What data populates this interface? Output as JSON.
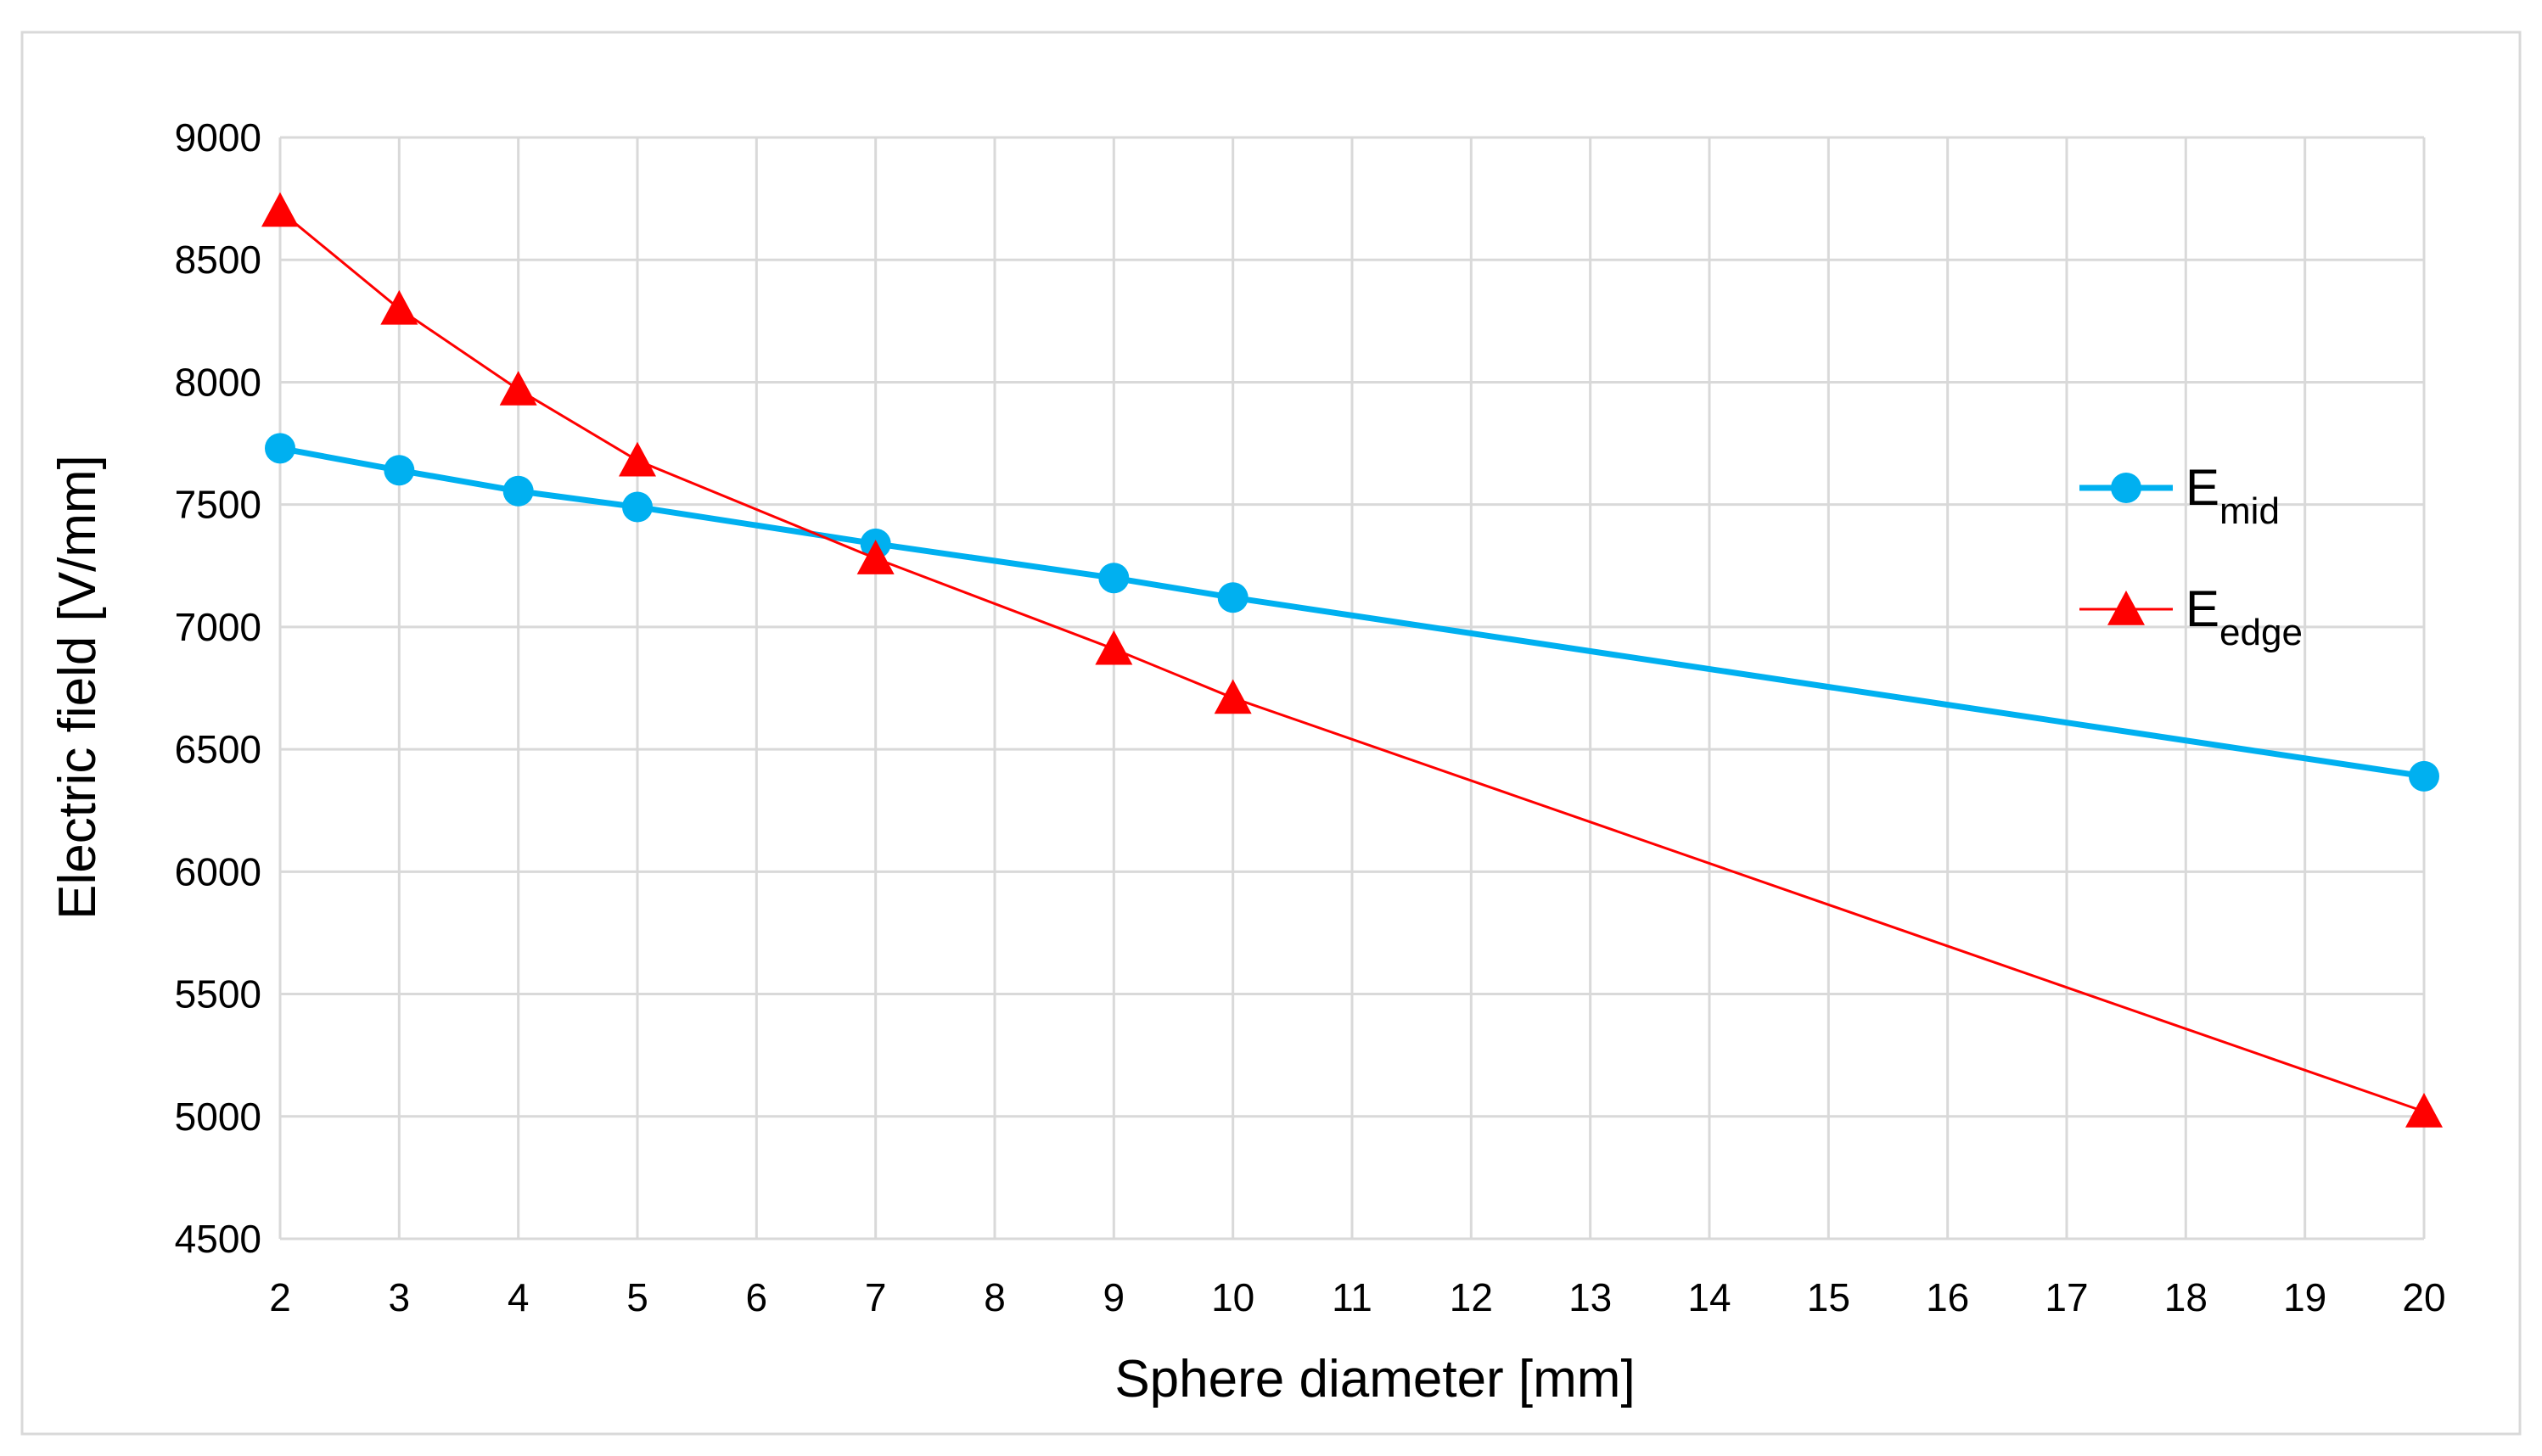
{
  "chart_data": {
    "type": "line",
    "xlabel": "Sphere diameter [mm]",
    "ylabel": "Electric field [V/mm]",
    "xlim": [
      2,
      20
    ],
    "ylim": [
      4500,
      9000
    ],
    "x_ticks": [
      "2",
      "3",
      "4",
      "5",
      "6",
      "7",
      "8",
      "9",
      "10",
      "11",
      "12",
      "13",
      "14",
      "15",
      "16",
      "17",
      "18",
      "19",
      "20"
    ],
    "y_ticks": [
      "4500",
      "5000",
      "5500",
      "6000",
      "6500",
      "7000",
      "7500",
      "8000",
      "8500",
      "9000"
    ],
    "grid": true,
    "legend_position": "right",
    "series": [
      {
        "name": "E",
        "subscript": "mid",
        "color": "#00B0F0",
        "marker": "circle",
        "x": [
          2,
          3,
          4,
          5,
          7,
          9,
          10,
          20
        ],
        "values": [
          7730,
          7640,
          7555,
          7490,
          7340,
          7200,
          7120,
          6390
        ]
      },
      {
        "name": "E",
        "subscript": "edge",
        "color": "#FF0000",
        "marker": "triangle",
        "x": [
          2,
          3,
          4,
          5,
          7,
          9,
          10,
          20
        ],
        "values": [
          8700,
          8300,
          7970,
          7680,
          7280,
          6910,
          6710,
          5020
        ]
      }
    ]
  }
}
